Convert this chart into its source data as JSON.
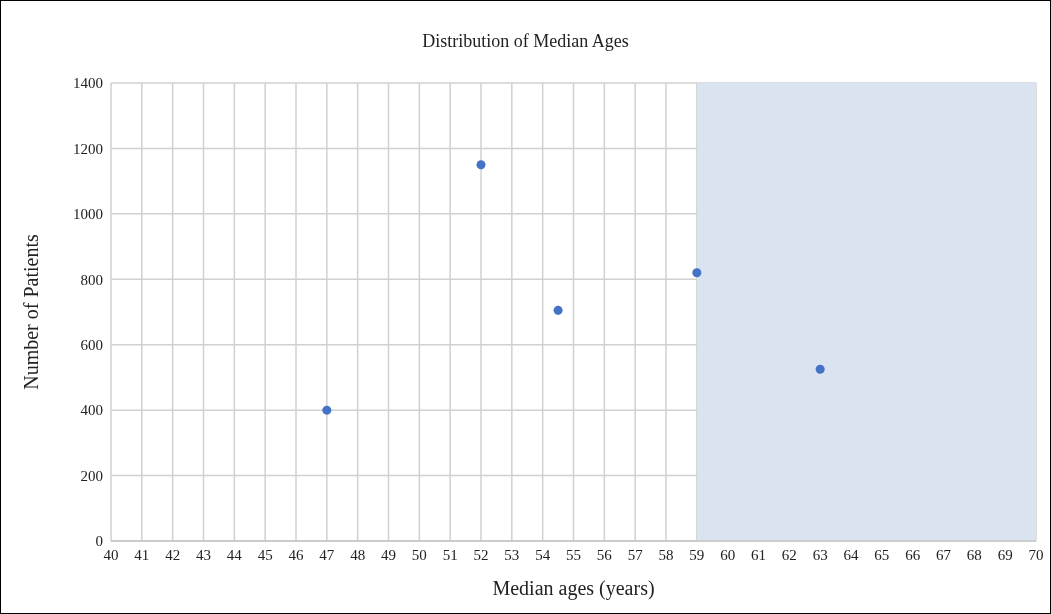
{
  "chart_data": {
    "type": "scatter",
    "title": "Distribution of Median Ages",
    "xlabel": "Median ages (years)",
    "ylabel": "Number of Patients",
    "x": [
      47,
      52,
      54.5,
      59,
      63
    ],
    "values": [
      400,
      1150,
      705,
      820,
      525
    ],
    "color": "#4472c4",
    "marker": "circle",
    "xlim": [
      40,
      70
    ],
    "xticks": [
      40,
      41,
      42,
      43,
      44,
      45,
      46,
      47,
      48,
      49,
      50,
      51,
      52,
      53,
      54,
      55,
      56,
      57,
      58,
      59,
      60,
      61,
      62,
      63,
      64,
      65,
      66,
      67,
      68,
      69,
      70
    ],
    "ylim": [
      0,
      1400
    ],
    "yticks": [
      0,
      200,
      400,
      600,
      800,
      1000,
      1200,
      1400
    ],
    "bands": [
      {
        "axis": "x",
        "from": 59,
        "to": 70,
        "color": "#dae3f0"
      }
    ],
    "grid": true
  }
}
